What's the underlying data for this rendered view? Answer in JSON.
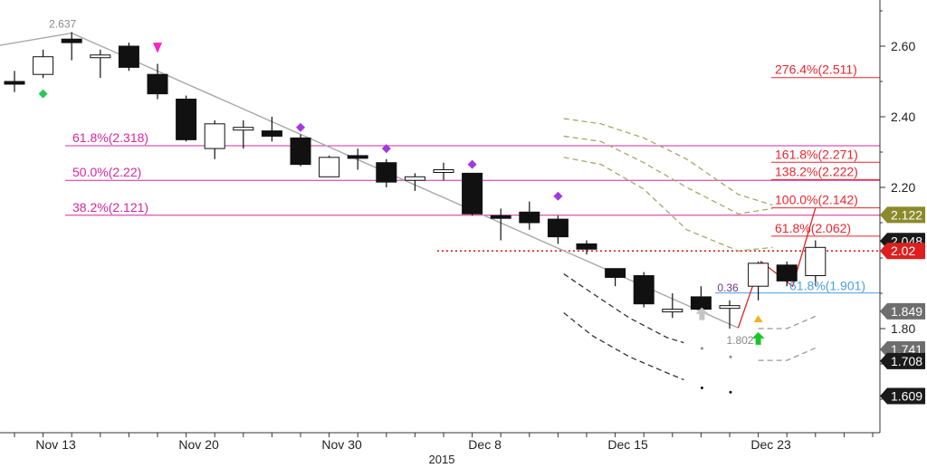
{
  "chart_data": {
    "type": "candlestick",
    "title": "",
    "xlabel": "2015",
    "ylabel": "",
    "ylim": [
      1.55,
      2.74
    ],
    "grid": false,
    "y_ticks": [
      {
        "value": 2.6,
        "label": "2.60"
      },
      {
        "value": 2.4,
        "label": "2.40"
      },
      {
        "value": 2.2,
        "label": "2.20"
      },
      {
        "value": 1.8,
        "label": "1.80"
      }
    ],
    "x_ticks": [
      {
        "index": 1,
        "label": "Nov 13"
      },
      {
        "index": 6,
        "label": "Nov 20"
      },
      {
        "index": 11,
        "label": "Nov 30"
      },
      {
        "index": 16,
        "label": "Dec 8"
      },
      {
        "index": 21,
        "label": "Dec 15"
      },
      {
        "index": 26,
        "label": "Dec 23"
      }
    ],
    "candles": [
      {
        "o": 2.5,
        "h": 2.53,
        "l": 2.47,
        "c": 2.495
      },
      {
        "o": 2.52,
        "h": 2.59,
        "l": 2.51,
        "c": 2.57
      },
      {
        "o": 2.62,
        "h": 2.64,
        "l": 2.56,
        "c": 2.61
      },
      {
        "o": 2.57,
        "h": 2.59,
        "l": 2.51,
        "c": 2.575
      },
      {
        "o": 2.6,
        "h": 2.61,
        "l": 2.53,
        "c": 2.54
      },
      {
        "o": 2.52,
        "h": 2.55,
        "l": 2.45,
        "c": 2.465
      },
      {
        "o": 2.45,
        "h": 2.46,
        "l": 2.33,
        "c": 2.335
      },
      {
        "o": 2.31,
        "h": 2.39,
        "l": 2.28,
        "c": 2.38
      },
      {
        "o": 2.37,
        "h": 2.39,
        "l": 2.31,
        "c": 2.37
      },
      {
        "o": 2.36,
        "h": 2.4,
        "l": 2.33,
        "c": 2.345
      },
      {
        "o": 2.34,
        "h": 2.35,
        "l": 2.26,
        "c": 2.265
      },
      {
        "o": 2.23,
        "h": 2.29,
        "l": 2.23,
        "c": 2.285
      },
      {
        "o": 2.29,
        "h": 2.31,
        "l": 2.25,
        "c": 2.285
      },
      {
        "o": 2.27,
        "h": 2.28,
        "l": 2.2,
        "c": 2.215
      },
      {
        "o": 2.22,
        "h": 2.24,
        "l": 2.19,
        "c": 2.23
      },
      {
        "o": 2.25,
        "h": 2.27,
        "l": 2.22,
        "c": 2.25
      },
      {
        "o": 2.24,
        "h": 2.24,
        "l": 2.12,
        "c": 2.125
      },
      {
        "o": 2.12,
        "h": 2.14,
        "l": 2.05,
        "c": 2.115
      },
      {
        "o": 2.13,
        "h": 2.16,
        "l": 2.08,
        "c": 2.1
      },
      {
        "o": 2.11,
        "h": 2.12,
        "l": 2.04,
        "c": 2.06
      },
      {
        "o": 2.04,
        "h": 2.05,
        "l": 2.01,
        "c": 2.025
      },
      {
        "o": 1.97,
        "h": 1.97,
        "l": 1.92,
        "c": 1.945
      },
      {
        "o": 1.95,
        "h": 1.96,
        "l": 1.86,
        "c": 1.87
      },
      {
        "o": 1.855,
        "h": 1.9,
        "l": 1.83,
        "c": 1.855
      },
      {
        "o": 1.89,
        "h": 1.92,
        "l": 1.84,
        "c": 1.855
      },
      {
        "o": 1.86,
        "h": 1.88,
        "l": 1.8,
        "c": 1.865
      },
      {
        "o": 1.92,
        "h": 1.99,
        "l": 1.88,
        "c": 1.985
      },
      {
        "o": 1.98,
        "h": 1.99,
        "l": 1.92,
        "c": 1.935
      },
      {
        "o": 1.95,
        "h": 2.05,
        "l": 1.92,
        "c": 2.03
      }
    ],
    "trendline": [
      {
        "i": -2.5,
        "v": 2.575
      },
      {
        "i": 2,
        "v": 2.637
      },
      {
        "i": 25.3,
        "v": 1.802
      }
    ],
    "swing_labels": [
      {
        "i": 2,
        "v": 2.637,
        "label": "2.637"
      },
      {
        "i": 25.3,
        "v": 1.802,
        "label": "1.802"
      }
    ],
    "retracement_levels": [
      {
        "value": 2.318,
        "label": "61.8%(2.318)"
      },
      {
        "value": 2.22,
        "label": "50.0%(2.22)"
      },
      {
        "value": 2.121,
        "label": "38.2%(2.121)"
      }
    ],
    "extension_levels": [
      {
        "value": 2.511,
        "label": "276.4%(2.511)"
      },
      {
        "value": 2.271,
        "label": "161.8%(2.271)"
      },
      {
        "value": 2.222,
        "label": "138.2%(2.222)"
      },
      {
        "value": 2.142,
        "label": "100.0%(2.142)"
      },
      {
        "value": 2.062,
        "label": "61.8%(2.062)"
      }
    ],
    "blue_level": {
      "value": 1.901,
      "label": "61.8%(1.901)"
    },
    "wave_label": "0.36",
    "dotted_level": {
      "value": 2.02
    },
    "price_tags": [
      {
        "value": 2.122,
        "label": "2.122",
        "color": "#8a8a2a"
      },
      {
        "value": 2.048,
        "label": "2.048",
        "color": "#1a1a1a"
      },
      {
        "value": 2.02,
        "label": "2.02",
        "color": "#dd1f1f"
      },
      {
        "value": 1.849,
        "label": "1.849",
        "color": "#6e6e6e"
      },
      {
        "value": 1.741,
        "label": "1.741",
        "color": "#6e6e6e"
      },
      {
        "value": 1.708,
        "label": "1.708",
        "color": "#1a1a1a"
      },
      {
        "value": 1.609,
        "label": "1.609",
        "color": "#1a1a1a"
      }
    ],
    "colors": {
      "retracement": "#d6289c",
      "extension": "#e8262f",
      "blue": "#4d9fe0",
      "trendline": "#a8a8a8",
      "olive_band": "#a8a66a"
    }
  }
}
